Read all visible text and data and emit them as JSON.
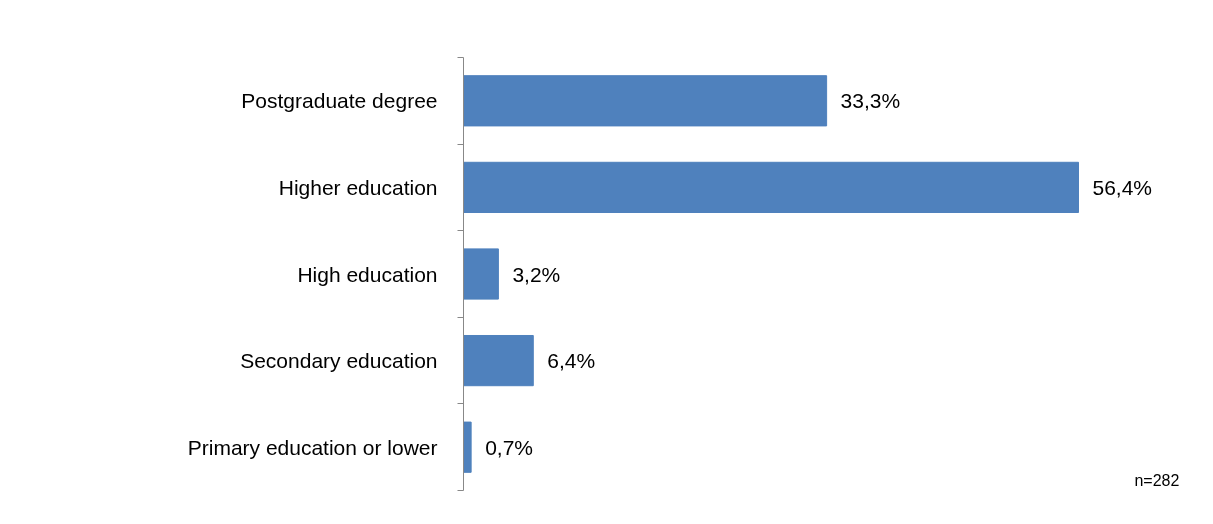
{
  "chart_data": {
    "type": "bar",
    "orientation": "horizontal",
    "categories": [
      "Postgraduate degree",
      "Higher education",
      "High education",
      "Secondary education",
      "Primary education or lower"
    ],
    "values": [
      33.3,
      56.4,
      3.2,
      6.4,
      0.7
    ],
    "value_labels": [
      "33,3%",
      "56,4%",
      "3,2%",
      "6,4%",
      "0,7%"
    ],
    "color": "#4f81bd",
    "tick_labels": "y",
    "grid": false,
    "annotations": [
      "n=282"
    ]
  }
}
